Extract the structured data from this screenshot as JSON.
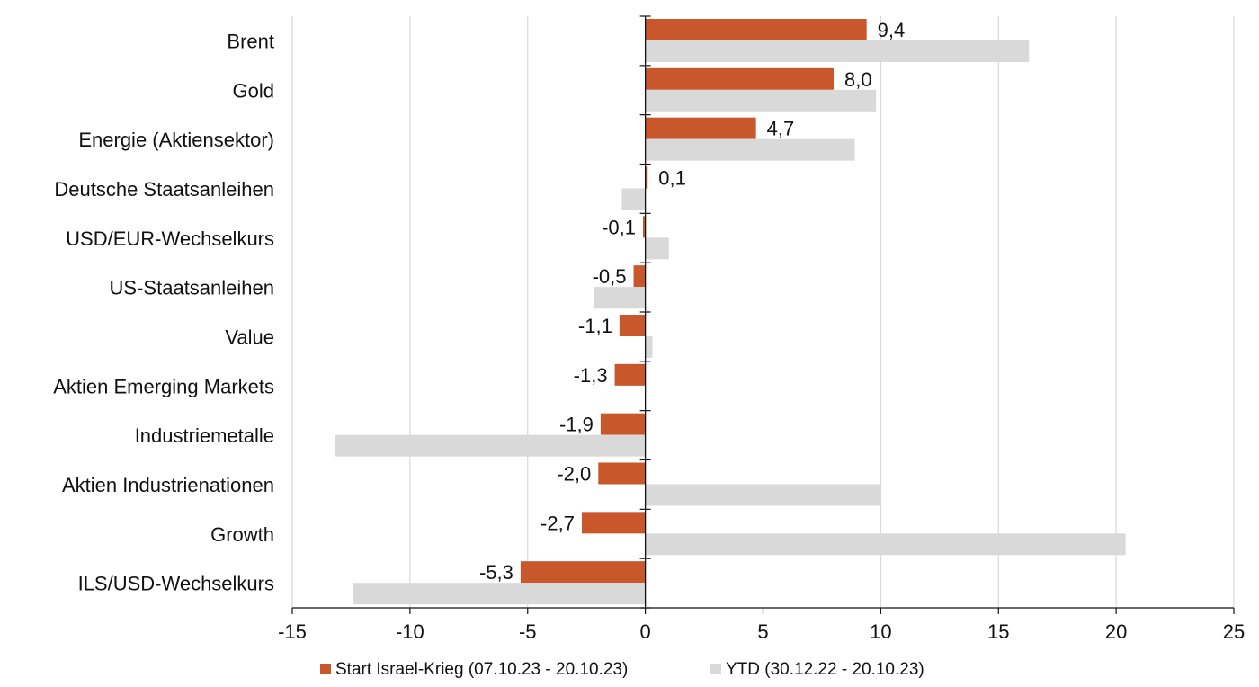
{
  "chart_data": {
    "type": "bar",
    "orientation": "horizontal",
    "categories": [
      "Brent",
      "Gold",
      "Energie (Aktiensektor)",
      "Deutsche Staatsanleihen",
      "USD/EUR-Wechselkurs",
      "US-Staatsanleihen",
      "Value",
      "Aktien Emerging Markets",
      "Industriemetalle",
      "Aktien Industrienationen",
      "Growth",
      "ILS/USD-Wechselkurs"
    ],
    "series": [
      {
        "name": "Start Israel-Krieg (07.10.23 - 20.10.23)",
        "color": "#C9572C",
        "values": [
          9.4,
          8.0,
          4.7,
          0.1,
          -0.1,
          -0.5,
          -1.1,
          -1.3,
          -1.9,
          -2.0,
          -2.7,
          -5.3
        ],
        "data_labels": [
          "9,4",
          "8,0",
          "4,7",
          "0,1",
          "-0,1",
          "-0,5",
          "-1,1",
          "-1,3",
          "-1,9",
          "-2,0",
          "-2,7",
          "-5,3"
        ]
      },
      {
        "name": "YTD (30.12.22 - 20.10.23)",
        "color": "#D9D9D9",
        "values": [
          16.3,
          9.8,
          8.9,
          -1.0,
          1.0,
          -2.2,
          0.3,
          0.0,
          -13.2,
          10.0,
          20.4,
          -12.4
        ]
      }
    ],
    "xlim": [
      -15,
      25
    ],
    "xticks": [
      -15,
      -10,
      -5,
      0,
      5,
      10,
      15,
      20,
      25
    ],
    "xtick_labels": [
      "-15",
      "-10",
      "-5",
      "0",
      "5",
      "10",
      "15",
      "20",
      "25"
    ],
    "grid": "vertical",
    "legend_position": "bottom",
    "title": "",
    "xlabel": "",
    "ylabel": ""
  }
}
